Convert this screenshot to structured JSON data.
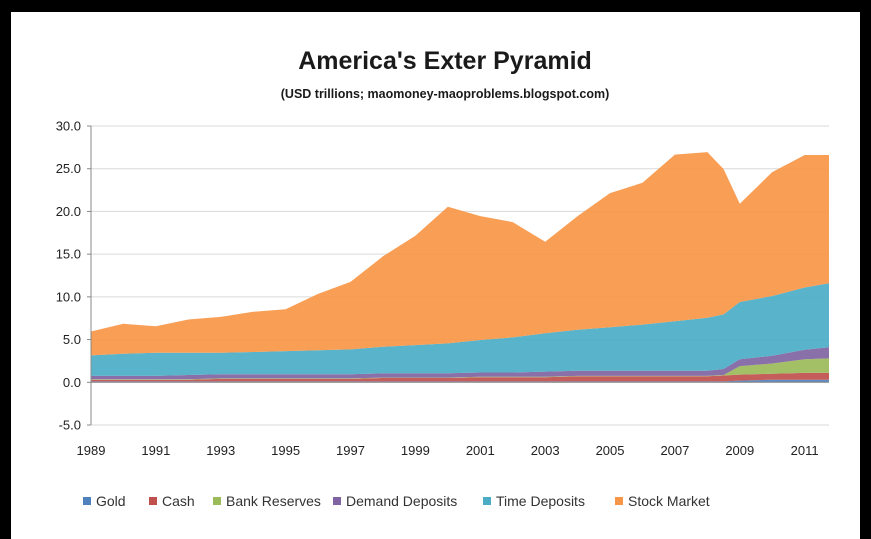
{
  "chart_data": {
    "type": "area",
    "title": "America's Exter Pyramid",
    "subtitle": "(USD trillions; maomoney-maoproblems.blogspot.com)",
    "xlabel": "",
    "ylabel": "",
    "x": [
      1989,
      1990,
      1991,
      1992,
      1993,
      1994,
      1995,
      1996,
      1997,
      1998,
      1999,
      2000,
      2001,
      2002,
      2003,
      2004,
      2005,
      2006,
      2007,
      2008,
      2008.5,
      2009,
      2010,
      2011,
      2011.75
    ],
    "x_ticks": [
      "1989",
      "1991",
      "1993",
      "1995",
      "1997",
      "1999",
      "2001",
      "2003",
      "2005",
      "2007",
      "2009",
      "2011"
    ],
    "x_tick_values": [
      1989,
      1991,
      1993,
      1995,
      1997,
      1999,
      2001,
      2003,
      2005,
      2007,
      2009,
      2011
    ],
    "ylim": [
      -5,
      30
    ],
    "y_ticks": [
      "-5.0",
      "0.0",
      "5.0",
      "10.0",
      "15.0",
      "20.0",
      "25.0",
      "30.0"
    ],
    "y_tick_values": [
      -5,
      0,
      5,
      10,
      15,
      20,
      25,
      30
    ],
    "grid": true,
    "legend_position": "bottom",
    "series": [
      {
        "name": "Gold",
        "color": "#4f81bd",
        "values": [
          0.1,
          0.1,
          0.1,
          0.1,
          0.1,
          0.1,
          0.1,
          0.1,
          0.1,
          0.1,
          0.1,
          0.1,
          0.1,
          0.1,
          0.1,
          0.1,
          0.1,
          0.1,
          0.1,
          0.1,
          0.1,
          0.2,
          0.3,
          0.3,
          0.3
        ]
      },
      {
        "name": "Cash",
        "color": "#c0504d",
        "values": [
          0.2,
          0.2,
          0.2,
          0.2,
          0.3,
          0.3,
          0.3,
          0.3,
          0.3,
          0.4,
          0.4,
          0.4,
          0.5,
          0.5,
          0.5,
          0.6,
          0.6,
          0.6,
          0.6,
          0.6,
          0.7,
          0.7,
          0.7,
          0.8,
          0.8
        ]
      },
      {
        "name": "Bank Reserves",
        "color": "#9bbb59",
        "values": [
          0.05,
          0.05,
          0.05,
          0.05,
          0.05,
          0.05,
          0.05,
          0.05,
          0.05,
          0.05,
          0.05,
          0.05,
          0.05,
          0.05,
          0.05,
          0.05,
          0.05,
          0.05,
          0.05,
          0.05,
          0.05,
          1.0,
          1.2,
          1.6,
          1.7
        ]
      },
      {
        "name": "Demand Deposits",
        "color": "#8064a2",
        "values": [
          0.4,
          0.4,
          0.4,
          0.5,
          0.5,
          0.5,
          0.5,
          0.5,
          0.5,
          0.5,
          0.5,
          0.5,
          0.5,
          0.5,
          0.6,
          0.6,
          0.6,
          0.6,
          0.6,
          0.6,
          0.7,
          0.8,
          0.9,
          1.1,
          1.3
        ]
      },
      {
        "name": "Time Deposits",
        "color": "#4bacc6",
        "values": [
          2.4,
          2.6,
          2.7,
          2.6,
          2.5,
          2.6,
          2.7,
          2.8,
          2.9,
          3.1,
          3.3,
          3.5,
          3.8,
          4.1,
          4.5,
          4.8,
          5.1,
          5.4,
          5.8,
          6.2,
          6.4,
          6.7,
          7.0,
          7.3,
          7.5
        ]
      },
      {
        "name": "Stock Market",
        "color": "#f79646",
        "values": [
          2.8,
          3.5,
          3.1,
          3.9,
          4.2,
          4.7,
          4.9,
          6.6,
          7.9,
          10.6,
          12.8,
          16.0,
          14.5,
          13.5,
          10.7,
          13.3,
          15.7,
          16.6,
          19.5,
          19.4,
          17.0,
          11.5,
          14.5,
          15.5,
          15.0
        ]
      }
    ]
  }
}
